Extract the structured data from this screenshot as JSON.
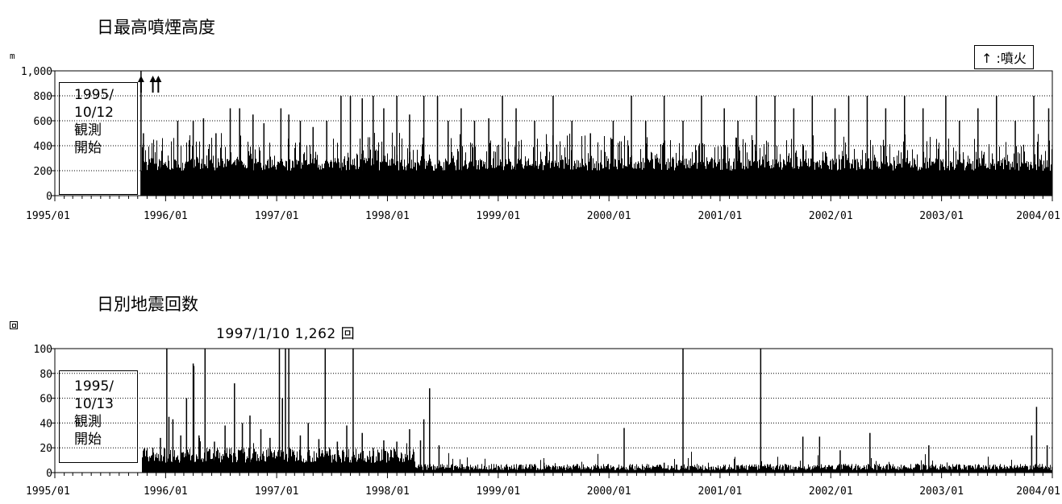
{
  "chart_data": [
    {
      "type": "bar",
      "title": "日最高噴煙高度",
      "unit_label": "m",
      "ylim": [
        0,
        1000
      ],
      "y_ticks": [
        {
          "value": 0,
          "label": "0"
        },
        {
          "value": 200,
          "label": "200"
        },
        {
          "value": 400,
          "label": "400"
        },
        {
          "value": 600,
          "label": "600"
        },
        {
          "value": 800,
          "label": "800"
        },
        {
          "value": 1000,
          "label": "1,000"
        }
      ],
      "x_range": [
        "1995/01/01",
        "2004/01/01"
      ],
      "x_ticks": [
        "1995/01",
        "1996/01",
        "1997/01",
        "1998/01",
        "1999/01",
        "2000/01",
        "2001/01",
        "2002/01",
        "2003/01",
        "2004/01"
      ],
      "grid": "horizontal dotted",
      "legend": {
        "text": "↑ :噴火",
        "position": "top-right"
      },
      "observation_start": {
        "lines": [
          "1995/",
          "10/12",
          "観測",
          "開始"
        ],
        "date": "1995/10/12"
      },
      "eruptions": [
        "1995/10/12",
        "1995/11/20",
        "1995/12/08"
      ],
      "series": [
        {
          "values": [
            [
              "1995/10/12",
              1000
            ],
            [
              "1995/10/20",
              500
            ],
            [
              "1995/11/15",
              300
            ],
            [
              "1995/12/15",
              280
            ],
            [
              "1996/02/10",
              600
            ],
            [
              "1996/04/01",
              600
            ],
            [
              "1996/05/05",
              620
            ],
            [
              "1996/06/15",
              500
            ],
            [
              "1996/08/01",
              700
            ],
            [
              "1996/09/01",
              700
            ],
            [
              "1996/10/15",
              650
            ],
            [
              "1996/11/20",
              580
            ],
            [
              "1997/01/15",
              700
            ],
            [
              "1997/02/10",
              650
            ],
            [
              "1997/03/20",
              600
            ],
            [
              "1997/05/01",
              550
            ],
            [
              "1997/06/15",
              600
            ],
            [
              "1997/08/01",
              800
            ],
            [
              "1997/09/01",
              800
            ],
            [
              "1997/10/10",
              780
            ],
            [
              "1997/11/15",
              800
            ],
            [
              "1997/12/20",
              700
            ],
            [
              "1998/02/01",
              800
            ],
            [
              "1998/03/15",
              650
            ],
            [
              "1998/05/01",
              800
            ],
            [
              "1998/06/15",
              800
            ],
            [
              "1998/07/20",
              600
            ],
            [
              "1998/09/01",
              700
            ],
            [
              "1998/10/15",
              600
            ],
            [
              "1998/12/01",
              620
            ],
            [
              "1999/01/15",
              800
            ],
            [
              "1999/03/01",
              700
            ],
            [
              "1999/05/01",
              600
            ],
            [
              "1999/07/01",
              800
            ],
            [
              "1999/09/01",
              600
            ],
            [
              "1999/11/01",
              500
            ],
            [
              "2000/01/15",
              600
            ],
            [
              "2000/03/15",
              800
            ],
            [
              "2000/05/01",
              600
            ],
            [
              "2000/07/01",
              800
            ],
            [
              "2000/09/01",
              600
            ],
            [
              "2000/11/01",
              800
            ],
            [
              "2001/01/15",
              700
            ],
            [
              "2001/03/01",
              600
            ],
            [
              "2001/05/01",
              800
            ],
            [
              "2001/07/01",
              800
            ],
            [
              "2001/09/01",
              700
            ],
            [
              "2001/11/01",
              800
            ],
            [
              "2002/01/15",
              700
            ],
            [
              "2002/03/01",
              800
            ],
            [
              "2002/05/01",
              800
            ],
            [
              "2002/07/01",
              700
            ],
            [
              "2002/09/01",
              800
            ],
            [
              "2002/11/01",
              700
            ],
            [
              "2003/01/15",
              800
            ],
            [
              "2003/03/01",
              600
            ],
            [
              "2003/05/01",
              700
            ],
            [
              "2003/07/01",
              800
            ],
            [
              "2003/09/01",
              600
            ],
            [
              "2003/11/01",
              800
            ],
            [
              "2003/12/20",
              700
            ]
          ]
        }
      ]
    },
    {
      "type": "bar",
      "title": "日別地震回数",
      "unit_label": "回",
      "ylim": [
        0,
        100
      ],
      "y_ticks": [
        {
          "value": 0,
          "label": "0"
        },
        {
          "value": 20,
          "label": "20"
        },
        {
          "value": 40,
          "label": "40"
        },
        {
          "value": 60,
          "label": "60"
        },
        {
          "value": 80,
          "label": "80"
        },
        {
          "value": 100,
          "label": "100"
        }
      ],
      "x_range": [
        "1995/01/01",
        "2004/01/01"
      ],
      "x_ticks": [
        "1995/01",
        "1996/01",
        "1997/01",
        "1998/01",
        "1999/01",
        "2000/01",
        "2001/01",
        "2002/01",
        "2003/01",
        "2004/01"
      ],
      "grid": "horizontal dotted",
      "annotation": "1997/1/10  1,262 回",
      "observation_start": {
        "lines": [
          "1995/",
          "10/13",
          "観測",
          "開始"
        ],
        "date": "1995/10/13"
      },
      "series": [
        {
          "values": [
            [
              "1995/11/20",
              20
            ],
            [
              "1995/12/15",
              28
            ],
            [
              "1996/01/05",
              100
            ],
            [
              "1996/01/12",
              45
            ],
            [
              "1996/01/25",
              43
            ],
            [
              "1996/02/20",
              30
            ],
            [
              "1996/03/10",
              60
            ],
            [
              "1996/04/01",
              88
            ],
            [
              "1996/04/03",
              86
            ],
            [
              "1996/04/20",
              30
            ],
            [
              "1996/05/10",
              100
            ],
            [
              "1996/06/10",
              25
            ],
            [
              "1996/07/15",
              38
            ],
            [
              "1996/08/15",
              72
            ],
            [
              "1996/09/10",
              40
            ],
            [
              "1996/10/05",
              46
            ],
            [
              "1996/11/10",
              35
            ],
            [
              "1996/12/10",
              28
            ],
            [
              "1997/01/10",
              100
            ],
            [
              "1997/01/20",
              60
            ],
            [
              "1997/01/30",
              100
            ],
            [
              "1997/02/10",
              100
            ],
            [
              "1997/03/20",
              30
            ],
            [
              "1997/04/15",
              40
            ],
            [
              "1997/05/20",
              27
            ],
            [
              "1997/06/10",
              100
            ],
            [
              "1997/07/20",
              25
            ],
            [
              "1997/08/20",
              38
            ],
            [
              "1997/09/10",
              100
            ],
            [
              "1997/10/10",
              32
            ],
            [
              "1997/11/15",
              20
            ],
            [
              "1997/12/20",
              26
            ],
            [
              "1998/02/01",
              25
            ],
            [
              "1998/03/15",
              35
            ],
            [
              "1998/04/20",
              26
            ],
            [
              "1998/05/01",
              43
            ],
            [
              "1998/05/20",
              68
            ],
            [
              "1998/06/20",
              22
            ],
            [
              "1999/06/01",
              8
            ],
            [
              "2000/02/20",
              36
            ],
            [
              "2000/07/01",
              8
            ],
            [
              "2000/09/01",
              100
            ],
            [
              "2001/05/15",
              100
            ],
            [
              "2001/10/01",
              29
            ],
            [
              "2001/11/25",
              29
            ],
            [
              "2002/02/01",
              18
            ],
            [
              "2002/05/10",
              32
            ],
            [
              "2002/11/20",
              22
            ],
            [
              "2003/10/25",
              30
            ],
            [
              "2003/11/10",
              53
            ],
            [
              "2003/12/15",
              22
            ]
          ]
        }
      ]
    }
  ]
}
